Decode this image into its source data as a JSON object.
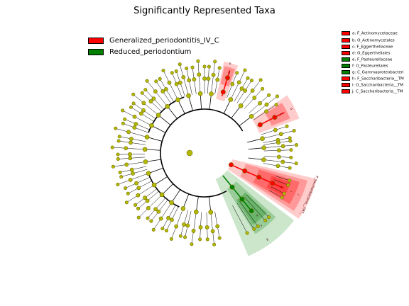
{
  "title": "Significantly Represented Taxa",
  "colors": {
    "red": "#ff0000",
    "green": "#008000",
    "node": "#b5b800",
    "node_edge": "#6e6e00"
  },
  "legend": [
    {
      "label": "Generalized_periodontitis_IV_C",
      "color": "#ff0000"
    },
    {
      "label": "Reduced_periodontium",
      "color": "#008000"
    }
  ],
  "key": [
    {
      "label": "a: F_Actinomycetaceae",
      "color": "#ff0000"
    },
    {
      "label": "b: O_Actinomycetales",
      "color": "#ff0000"
    },
    {
      "label": "c: F_Eggerthellaceae",
      "color": "#ff0000"
    },
    {
      "label": "d: O_Eggerthellales",
      "color": "#ff0000"
    },
    {
      "label": "e: F_Pasteurellaceae",
      "color": "#008000"
    },
    {
      "label": "f: O_Pasteurellales",
      "color": "#008000"
    },
    {
      "label": "g: C_Gammaproteobacteri",
      "color": "#008000"
    },
    {
      "label": "h: F_Saccharibacteria__TM",
      "color": "#ff0000"
    },
    {
      "label": "i: O_Saccharibacteria__TM",
      "color": "#ff0000"
    },
    {
      "label": "j: C_Saccharibacteria__TM",
      "color": "#ff0000"
    }
  ],
  "sector_labels": [
    {
      "text": "a",
      "color": "#ff0000"
    },
    {
      "text": "b",
      "color": "#ff0000"
    },
    {
      "text": "c",
      "color": "#ff0000"
    },
    {
      "text": "d",
      "color": "#ff0000"
    },
    {
      "text": "e",
      "color": "#008000"
    },
    {
      "text": "f",
      "color": "#008000"
    },
    {
      "text": "g",
      "color": "#008000"
    },
    {
      "text": "h",
      "color": "#ff0000"
    },
    {
      "text": "i",
      "color": "#ff0000"
    },
    {
      "text": "j",
      "color": "#ff0000"
    },
    {
      "text": "P_Saccharibacteria__TM7_",
      "color": "#ff0000"
    }
  ]
}
